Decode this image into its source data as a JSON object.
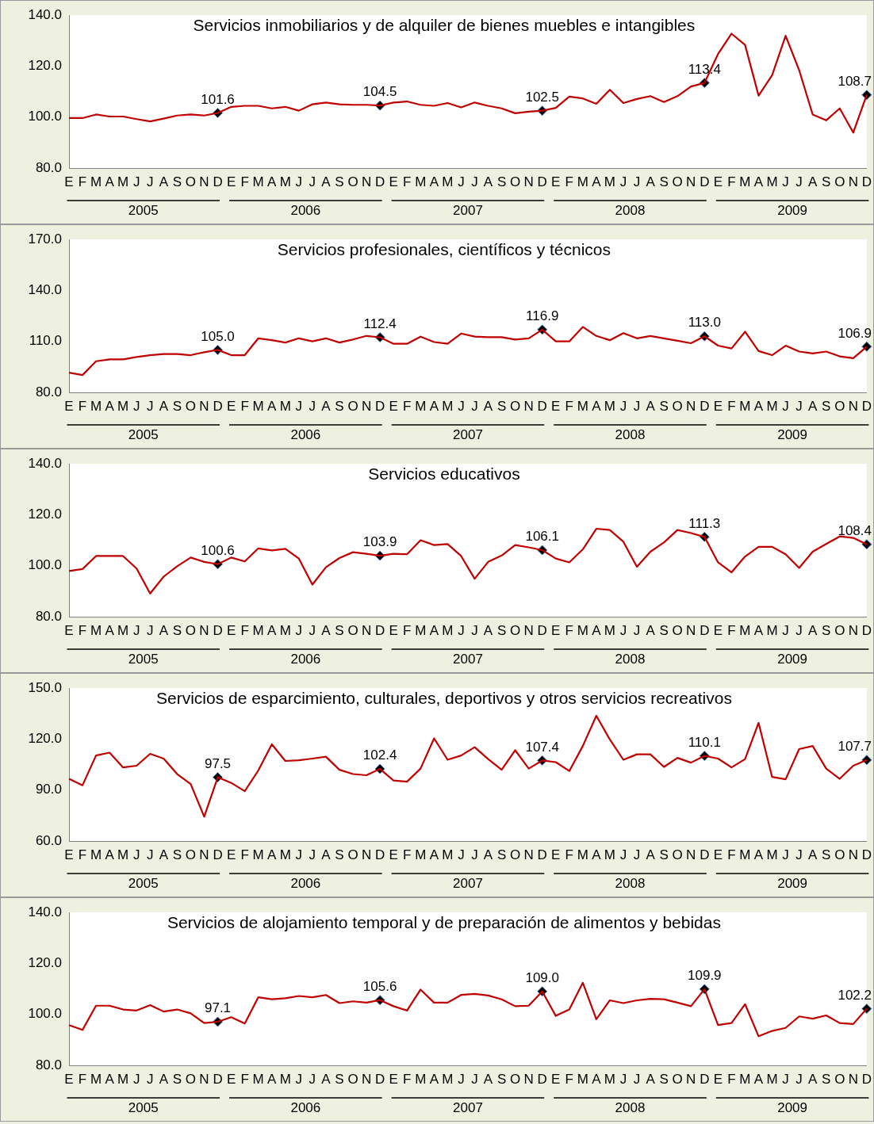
{
  "chart_data": [
    {
      "type": "line",
      "title": "Servicios inmobiliarios y de alquiler de bienes muebles e intangibles",
      "categories": [
        "E",
        "F",
        "M",
        "A",
        "M",
        "J",
        "J",
        "A",
        "S",
        "O",
        "N",
        "D",
        "E",
        "F",
        "M",
        "A",
        "M",
        "J",
        "J",
        "A",
        "S",
        "O",
        "N",
        "D",
        "E",
        "F",
        "M",
        "A",
        "M",
        "J",
        "J",
        "A",
        "S",
        "O",
        "N",
        "D",
        "E",
        "F",
        "M",
        "A",
        "M",
        "J",
        "J",
        "A",
        "S",
        "O",
        "N",
        "D",
        "E",
        "F",
        "M",
        "A",
        "M",
        "J",
        "J",
        "A",
        "S",
        "O",
        "N",
        "D"
      ],
      "ylim": [
        80,
        140
      ],
      "yticks": [
        {
          "value": 80,
          "label": "80.0"
        },
        {
          "value": 100,
          "label": "100.0"
        },
        {
          "value": 120,
          "label": "120.0"
        },
        {
          "value": 140,
          "label": "140.0"
        }
      ],
      "annotations": [
        "2005",
        "2006",
        "2007",
        "2008",
        "2009"
      ],
      "series": [
        {
          "type": "line",
          "color": "#c00000",
          "values": [
            99.6,
            99.6,
            101,
            100.2,
            100.2,
            99.2,
            98.3,
            99.4,
            100.6,
            101,
            100.6,
            101.6,
            104,
            104.4,
            104.4,
            103.4,
            104,
            102.5,
            105,
            105.7,
            105,
            104.8,
            104.8,
            104.5,
            105.7,
            106.1,
            104.8,
            104.4,
            105.5,
            103.8,
            105.7,
            104.4,
            103.4,
            101.5,
            102.1,
            102.5,
            103.6,
            108,
            107.3,
            105.2,
            110.7,
            105.5,
            107.1,
            108.2,
            105.9,
            108.2,
            112,
            113.4,
            124.7,
            132.7,
            128.3,
            108.4,
            116.4,
            131.9,
            118.4,
            101,
            98.7,
            103.4,
            93.9,
            108.7
          ]
        },
        {
          "type": "scatter",
          "color": "#000000",
          "marker": "diamond",
          "values": [
            null,
            null,
            null,
            null,
            null,
            null,
            null,
            null,
            null,
            null,
            null,
            101.6,
            null,
            null,
            null,
            null,
            null,
            null,
            null,
            null,
            null,
            null,
            null,
            104.5,
            null,
            null,
            null,
            null,
            null,
            null,
            null,
            null,
            null,
            null,
            null,
            102.5,
            null,
            null,
            null,
            null,
            null,
            null,
            null,
            null,
            null,
            null,
            null,
            113.4,
            null,
            null,
            null,
            null,
            null,
            null,
            null,
            null,
            null,
            null,
            null,
            108.7
          ],
          "value_labels": [
            null,
            null,
            null,
            null,
            null,
            null,
            null,
            null,
            null,
            null,
            null,
            "101.6",
            null,
            null,
            null,
            null,
            null,
            null,
            null,
            null,
            null,
            null,
            null,
            "104.5",
            null,
            null,
            null,
            null,
            null,
            null,
            null,
            null,
            null,
            null,
            null,
            "102.5",
            null,
            null,
            null,
            null,
            null,
            null,
            null,
            null,
            null,
            null,
            null,
            "113.4",
            null,
            null,
            null,
            null,
            null,
            null,
            null,
            null,
            null,
            null,
            null,
            "108.7"
          ]
        }
      ]
    },
    {
      "type": "line",
      "title": "Servicios profesionales, científicos y técnicos",
      "categories": [
        "E",
        "F",
        "M",
        "A",
        "M",
        "J",
        "J",
        "A",
        "S",
        "O",
        "N",
        "D",
        "E",
        "F",
        "M",
        "A",
        "M",
        "J",
        "J",
        "A",
        "S",
        "O",
        "N",
        "D",
        "E",
        "F",
        "M",
        "A",
        "M",
        "J",
        "J",
        "A",
        "S",
        "O",
        "N",
        "D",
        "E",
        "F",
        "M",
        "A",
        "M",
        "J",
        "J",
        "A",
        "S",
        "O",
        "N",
        "D",
        "E",
        "F",
        "M",
        "A",
        "M",
        "J",
        "J",
        "A",
        "S",
        "O",
        "N",
        "D"
      ],
      "ylim": [
        80,
        170
      ],
      "yticks": [
        {
          "value": 80,
          "label": "80.0"
        },
        {
          "value": 110,
          "label": "110.0"
        },
        {
          "value": 140,
          "label": "140.0"
        },
        {
          "value": 170,
          "label": "170.0"
        }
      ],
      "annotations": [
        "2005",
        "2006",
        "2007",
        "2008",
        "2009"
      ],
      "series": [
        {
          "type": "line",
          "color": "#c00000",
          "values": [
            91.6,
            90.2,
            98.3,
            99.4,
            99.4,
            100.8,
            101.9,
            102.6,
            102.6,
            101.9,
            103.6,
            105.0,
            101.9,
            101.9,
            111.8,
            110.7,
            109.3,
            111.8,
            110,
            111.8,
            109.3,
            111.1,
            113.2,
            112.4,
            108.6,
            108.6,
            112.8,
            109.6,
            108.6,
            114.6,
            112.8,
            112.5,
            112.5,
            111.1,
            111.8,
            116.9,
            110,
            110,
            118.5,
            113.2,
            110.7,
            114.9,
            111.8,
            113.2,
            111.8,
            110.4,
            108.9,
            113.0,
            107.5,
            105.8,
            115.7,
            104.3,
            101.9,
            107.5,
            104,
            102.9,
            104,
            101.2,
            100.1,
            106.9
          ]
        },
        {
          "type": "scatter",
          "color": "#000000",
          "marker": "diamond",
          "values": [
            null,
            null,
            null,
            null,
            null,
            null,
            null,
            null,
            null,
            null,
            null,
            105.0,
            null,
            null,
            null,
            null,
            null,
            null,
            null,
            null,
            null,
            null,
            null,
            112.4,
            null,
            null,
            null,
            null,
            null,
            null,
            null,
            null,
            null,
            null,
            null,
            116.9,
            null,
            null,
            null,
            null,
            null,
            null,
            null,
            null,
            null,
            null,
            null,
            113.0,
            null,
            null,
            null,
            null,
            null,
            null,
            null,
            null,
            null,
            null,
            null,
            106.9
          ],
          "value_labels": [
            null,
            null,
            null,
            null,
            null,
            null,
            null,
            null,
            null,
            null,
            null,
            "105.0",
            null,
            null,
            null,
            null,
            null,
            null,
            null,
            null,
            null,
            null,
            null,
            "112.4",
            null,
            null,
            null,
            null,
            null,
            null,
            null,
            null,
            null,
            null,
            null,
            "116.9",
            null,
            null,
            null,
            null,
            null,
            null,
            null,
            null,
            null,
            null,
            null,
            "113.0",
            null,
            null,
            null,
            null,
            null,
            null,
            null,
            null,
            null,
            null,
            null,
            "106.9"
          ]
        }
      ]
    },
    {
      "type": "line",
      "title": "Servicios educativos",
      "categories": [
        "E",
        "F",
        "M",
        "A",
        "M",
        "J",
        "J",
        "A",
        "S",
        "O",
        "N",
        "D",
        "E",
        "F",
        "M",
        "A",
        "M",
        "J",
        "J",
        "A",
        "S",
        "O",
        "N",
        "D",
        "E",
        "F",
        "M",
        "A",
        "M",
        "J",
        "J",
        "A",
        "S",
        "O",
        "N",
        "D",
        "E",
        "F",
        "M",
        "A",
        "M",
        "J",
        "J",
        "A",
        "S",
        "O",
        "N",
        "D",
        "E",
        "F",
        "M",
        "A",
        "M",
        "J",
        "J",
        "A",
        "S",
        "O",
        "N",
        "D"
      ],
      "ylim": [
        80,
        140
      ],
      "yticks": [
        {
          "value": 80,
          "label": "80.0"
        },
        {
          "value": 100,
          "label": "100.0"
        },
        {
          "value": 120,
          "label": "120.0"
        },
        {
          "value": 140,
          "label": "140.0"
        }
      ],
      "annotations": [
        "2005",
        "2006",
        "2007",
        "2008",
        "2009"
      ],
      "series": [
        {
          "type": "line",
          "color": "#c00000",
          "values": [
            97.9,
            98.7,
            103.8,
            103.8,
            103.8,
            98.9,
            89.1,
            95.7,
            99.8,
            103.2,
            101.5,
            100.6,
            103.2,
            101.7,
            106.8,
            106,
            106.6,
            102.8,
            92.6,
            99.4,
            103,
            105.3,
            104.7,
            103.9,
            104.7,
            104.5,
            110,
            108.1,
            108.5,
            103.8,
            94.9,
            101.5,
            104,
            108.1,
            107.2,
            106.1,
            102.8,
            101.3,
            106.4,
            114.5,
            114,
            109.4,
            99.6,
            105.5,
            109.1,
            114,
            112.8,
            111.3,
            101.3,
            97.4,
            103.6,
            107.4,
            107.4,
            104.5,
            99.1,
            105.5,
            108.5,
            111.5,
            110.9,
            108.4
          ]
        },
        {
          "type": "scatter",
          "color": "#000000",
          "marker": "diamond",
          "values": [
            null,
            null,
            null,
            null,
            null,
            null,
            null,
            null,
            null,
            null,
            null,
            100.6,
            null,
            null,
            null,
            null,
            null,
            null,
            null,
            null,
            null,
            null,
            null,
            103.9,
            null,
            null,
            null,
            null,
            null,
            null,
            null,
            null,
            null,
            null,
            null,
            106.1,
            null,
            null,
            null,
            null,
            null,
            null,
            null,
            null,
            null,
            null,
            null,
            111.3,
            null,
            null,
            null,
            null,
            null,
            null,
            null,
            null,
            null,
            null,
            null,
            108.4
          ],
          "value_labels": [
            null,
            null,
            null,
            null,
            null,
            null,
            null,
            null,
            null,
            null,
            null,
            "100.6",
            null,
            null,
            null,
            null,
            null,
            null,
            null,
            null,
            null,
            null,
            null,
            "103.9",
            null,
            null,
            null,
            null,
            null,
            null,
            null,
            null,
            null,
            null,
            null,
            "106.1",
            null,
            null,
            null,
            null,
            null,
            null,
            null,
            null,
            null,
            null,
            null,
            "111.3",
            null,
            null,
            null,
            null,
            null,
            null,
            null,
            null,
            null,
            null,
            null,
            "108.4"
          ]
        }
      ]
    },
    {
      "type": "line",
      "title": "Servicios de esparcimiento, culturales, deportivos y otros servicios recreativos",
      "categories": [
        "E",
        "F",
        "M",
        "A",
        "M",
        "J",
        "J",
        "A",
        "S",
        "O",
        "N",
        "D",
        "E",
        "F",
        "M",
        "A",
        "M",
        "J",
        "J",
        "A",
        "S",
        "O",
        "N",
        "D",
        "E",
        "F",
        "M",
        "A",
        "M",
        "J",
        "J",
        "A",
        "S",
        "O",
        "N",
        "D",
        "E",
        "F",
        "M",
        "A",
        "M",
        "J",
        "J",
        "A",
        "S",
        "O",
        "N",
        "D",
        "E",
        "F",
        "M",
        "A",
        "M",
        "J",
        "J",
        "A",
        "S",
        "O",
        "N",
        "D"
      ],
      "ylim": [
        60,
        150
      ],
      "yticks": [
        {
          "value": 60,
          "label": "60.0"
        },
        {
          "value": 90,
          "label": "90.0"
        },
        {
          "value": 120,
          "label": "120.0"
        },
        {
          "value": 150,
          "label": "150.0"
        }
      ],
      "annotations": [
        "2005",
        "2006",
        "2007",
        "2008",
        "2009"
      ],
      "series": [
        {
          "type": "line",
          "color": "#c00000",
          "values": [
            96.6,
            92.8,
            110.3,
            112,
            103.3,
            104.3,
            111.3,
            108.5,
            99.4,
            93.5,
            74.3,
            97.5,
            94.2,
            89.3,
            101.5,
            116.9,
            107.1,
            107.5,
            108.5,
            109.6,
            101.9,
            99.4,
            98.7,
            102.4,
            95.6,
            94.9,
            102.6,
            120.4,
            107.8,
            110.3,
            115.2,
            108.2,
            101.9,
            113.4,
            102.6,
            107.4,
            106.4,
            101.2,
            115.9,
            133.7,
            119.7,
            107.8,
            111,
            111,
            103.6,
            108.9,
            106.1,
            110.1,
            108.5,
            103.3,
            108.2,
            129.5,
            97.7,
            96.3,
            114.1,
            115.9,
            102.6,
            96.6,
            104.3,
            107.7
          ]
        },
        {
          "type": "scatter",
          "color": "#000000",
          "marker": "diamond",
          "values": [
            null,
            null,
            null,
            null,
            null,
            null,
            null,
            null,
            null,
            null,
            null,
            97.5,
            null,
            null,
            null,
            null,
            null,
            null,
            null,
            null,
            null,
            null,
            null,
            102.4,
            null,
            null,
            null,
            null,
            null,
            null,
            null,
            null,
            null,
            null,
            null,
            107.4,
            null,
            null,
            null,
            null,
            null,
            null,
            null,
            null,
            null,
            null,
            null,
            110.1,
            null,
            null,
            null,
            null,
            null,
            null,
            null,
            null,
            null,
            null,
            null,
            107.7
          ],
          "value_labels": [
            null,
            null,
            null,
            null,
            null,
            null,
            null,
            null,
            null,
            null,
            null,
            "97.5",
            null,
            null,
            null,
            null,
            null,
            null,
            null,
            null,
            null,
            null,
            null,
            "102.4",
            null,
            null,
            null,
            null,
            null,
            null,
            null,
            null,
            null,
            null,
            null,
            "107.4",
            null,
            null,
            null,
            null,
            null,
            null,
            null,
            null,
            null,
            null,
            null,
            "110.1",
            null,
            null,
            null,
            null,
            null,
            null,
            null,
            null,
            null,
            null,
            null,
            "107.7"
          ]
        }
      ]
    },
    {
      "type": "line",
      "title": "Servicios de alojamiento temporal y de preparación de alimentos y bebidas",
      "categories": [
        "E",
        "F",
        "M",
        "A",
        "M",
        "J",
        "J",
        "A",
        "S",
        "O",
        "N",
        "D",
        "E",
        "F",
        "M",
        "A",
        "M",
        "J",
        "J",
        "A",
        "S",
        "O",
        "N",
        "D",
        "E",
        "F",
        "M",
        "A",
        "M",
        "J",
        "J",
        "A",
        "S",
        "O",
        "N",
        "D",
        "E",
        "F",
        "M",
        "A",
        "M",
        "J",
        "J",
        "A",
        "S",
        "O",
        "N",
        "D",
        "E",
        "F",
        "M",
        "A",
        "M",
        "J",
        "J",
        "A",
        "S",
        "O",
        "N",
        "D"
      ],
      "ylim": [
        80,
        140
      ],
      "yticks": [
        {
          "value": 80,
          "label": "80.0"
        },
        {
          "value": 100,
          "label": "100.0"
        },
        {
          "value": 120,
          "label": "120.0"
        },
        {
          "value": 140,
          "label": "140.0"
        }
      ],
      "annotations": [
        "2005",
        "2006",
        "2007",
        "2008",
        "2009"
      ],
      "series": [
        {
          "type": "line",
          "color": "#c00000",
          "values": [
            95.8,
            93.9,
            103.4,
            103.4,
            101.9,
            101.5,
            103.6,
            101.1,
            101.9,
            100.4,
            96.6,
            97.1,
            98.9,
            96.4,
            106.7,
            105.9,
            106.3,
            107.2,
            106.7,
            107.6,
            104.4,
            105.1,
            104.6,
            105.6,
            103.2,
            101.5,
            109.7,
            104.6,
            104.6,
            107.6,
            108,
            107.4,
            105.9,
            103.2,
            103.4,
            109.0,
            99.4,
            101.9,
            112.4,
            98.1,
            105.5,
            104.4,
            105.5,
            106.1,
            105.9,
            104.6,
            103.2,
            109.9,
            95.8,
            96.6,
            104,
            91.4,
            93.5,
            94.7,
            99.2,
            98.3,
            99.6,
            96.6,
            96.2,
            102.2
          ]
        },
        {
          "type": "scatter",
          "color": "#000000",
          "marker": "diamond",
          "values": [
            null,
            null,
            null,
            null,
            null,
            null,
            null,
            null,
            null,
            null,
            null,
            97.1,
            null,
            null,
            null,
            null,
            null,
            null,
            null,
            null,
            null,
            null,
            null,
            105.6,
            null,
            null,
            null,
            null,
            null,
            null,
            null,
            null,
            null,
            null,
            null,
            109.0,
            null,
            null,
            null,
            null,
            null,
            null,
            null,
            null,
            null,
            null,
            null,
            109.9,
            null,
            null,
            null,
            null,
            null,
            null,
            null,
            null,
            null,
            null,
            null,
            102.2
          ],
          "value_labels": [
            null,
            null,
            null,
            null,
            null,
            null,
            null,
            null,
            null,
            null,
            null,
            "97.1",
            null,
            null,
            null,
            null,
            null,
            null,
            null,
            null,
            null,
            null,
            null,
            "105.6",
            null,
            null,
            null,
            null,
            null,
            null,
            null,
            null,
            null,
            null,
            null,
            "109.0",
            null,
            null,
            null,
            null,
            null,
            null,
            null,
            null,
            null,
            null,
            null,
            "109.9",
            null,
            null,
            null,
            null,
            null,
            null,
            null,
            null,
            null,
            null,
            null,
            "102.2"
          ]
        }
      ]
    }
  ]
}
